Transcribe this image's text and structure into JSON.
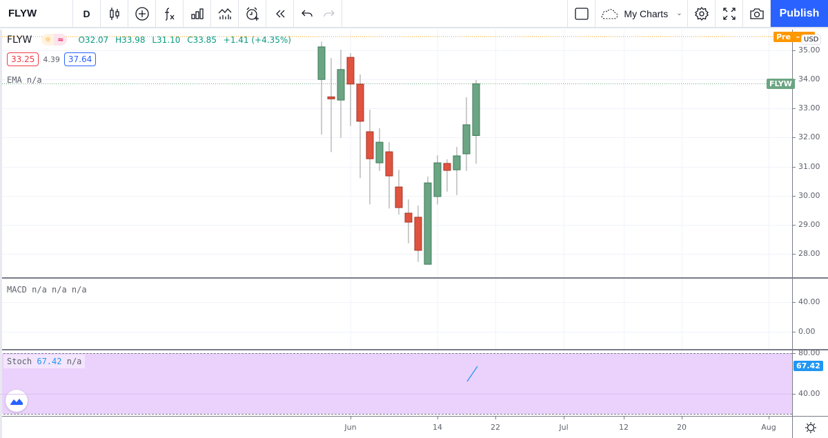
{
  "toolbar": {
    "symbol": "FLYW",
    "interval": "D",
    "icons": [
      "candles-style-icon",
      "add-symbol-icon",
      "indicators-fx-icon",
      "bar-chart-icon",
      "templates-icon",
      "alert-icon",
      "replay-icon",
      "undo-icon",
      "redo-icon"
    ],
    "my_charts_label": "My Charts",
    "publish_label": "Publish",
    "right_icons": [
      "layout-square-icon",
      "cloud-icon",
      "settings-icon",
      "fullscreen-icon",
      "camera-icon"
    ]
  },
  "legend": {
    "symbol": "FLYW",
    "session_badges": [
      "sun-icon",
      "wave-icon"
    ],
    "ohlc": {
      "open": "O32.07",
      "high": "H33.98",
      "low": "L31.10",
      "close": "C33.85",
      "change": "+1.41 (+4.35%)"
    },
    "bid": "33.25",
    "spread": "4.39",
    "ask": "37.64",
    "ema": "EMA  n/a"
  },
  "macd": {
    "label": "MACD  n/a n/a n/a"
  },
  "stoch": {
    "name": "Stoch",
    "value": "67.42",
    "extra": "n/a"
  },
  "price_axis": {
    "labels": [
      "35.00",
      "34.00",
      "33.00",
      "32.00",
      "31.00",
      "30.00",
      "29.00",
      "28.00"
    ],
    "currency": "USD",
    "pre_label": "Pre",
    "last_tag": "FLYW",
    "macd_labels": [
      "40.00",
      "0.00"
    ],
    "stoch_labels": [
      "80.00",
      "40.00"
    ],
    "stoch_value_tag": "67.42"
  },
  "time_axis": {
    "labels": [
      "Jun",
      "14",
      "22",
      "Jul",
      "12",
      "20",
      "Aug"
    ]
  },
  "colors": {
    "up": "#6ba583",
    "down": "#e0533f",
    "accent": "#2962ff",
    "pre": "#ff9800",
    "stoch_bg": "#ead2fc",
    "stoch_line": "#2196f3"
  },
  "chart_data": {
    "type": "candlestick",
    "title": "FLYW, D",
    "ylabel": "USD",
    "ylim": [
      27.3,
      35.5
    ],
    "x_ticks": [
      "Jun",
      "14",
      "22",
      "Jul",
      "12",
      "20",
      "Aug"
    ],
    "candles": [
      {
        "o": 34.0,
        "h": 35.3,
        "l": 32.1,
        "c": 35.12
      },
      {
        "o": 33.4,
        "h": 34.74,
        "l": 31.5,
        "c": 33.33
      },
      {
        "o": 33.29,
        "h": 35.02,
        "l": 31.99,
        "c": 34.34
      },
      {
        "o": 34.76,
        "h": 34.9,
        "l": 32.4,
        "c": 33.84
      },
      {
        "o": 33.84,
        "h": 34.17,
        "l": 30.6,
        "c": 32.56
      },
      {
        "o": 32.2,
        "h": 32.96,
        "l": 29.7,
        "c": 31.27
      },
      {
        "o": 31.13,
        "h": 32.32,
        "l": 30.85,
        "c": 31.84
      },
      {
        "o": 31.51,
        "h": 31.84,
        "l": 29.56,
        "c": 30.68
      },
      {
        "o": 30.3,
        "h": 30.89,
        "l": 29.35,
        "c": 29.59
      },
      {
        "o": 29.4,
        "h": 29.87,
        "l": 28.36,
        "c": 29.09
      },
      {
        "o": 29.26,
        "h": 29.66,
        "l": 27.72,
        "c": 28.12
      },
      {
        "o": 27.64,
        "h": 30.66,
        "l": 27.64,
        "c": 30.44
      },
      {
        "o": 29.97,
        "h": 31.39,
        "l": 29.7,
        "c": 31.13
      },
      {
        "o": 31.11,
        "h": 31.25,
        "l": 30.14,
        "c": 30.87
      },
      {
        "o": 30.89,
        "h": 31.68,
        "l": 30.02,
        "c": 31.37
      },
      {
        "o": 31.44,
        "h": 33.39,
        "l": 30.85,
        "c": 32.44
      },
      {
        "o": 32.07,
        "h": 33.98,
        "l": 31.1,
        "c": 33.85
      }
    ],
    "indicators": {
      "ema": "n/a",
      "macd": [
        "n/a",
        "n/a",
        "n/a"
      ],
      "stoch": {
        "k": 67.42,
        "d": "n/a",
        "bands": [
          80,
          20
        ],
        "ylim": [
          20,
          80
        ]
      }
    }
  }
}
